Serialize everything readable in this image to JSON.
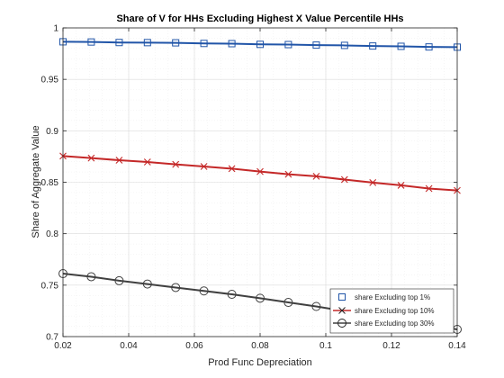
{
  "chart_data": {
    "type": "line",
    "title": "Share of V for HHs Excluding Highest X Value Percentile HHs",
    "xlabel": "Prod Func Depreciation",
    "ylabel": "Share of Aggregate Value",
    "xlim": [
      0.02,
      0.14
    ],
    "ylim": [
      0.7,
      1.0
    ],
    "xticks": [
      "0.02",
      "0.04",
      "0.06",
      "0.08",
      "0.1",
      "0.12",
      "0.14"
    ],
    "yticks": [
      "0.7",
      "0.75",
      "0.8",
      "0.85",
      "0.9",
      "0.95",
      "1"
    ],
    "grid": true,
    "legend_position": "bottom-right",
    "x": [
      0.02,
      0.0286,
      0.0371,
      0.0457,
      0.0543,
      0.0629,
      0.0714,
      0.08,
      0.0886,
      0.0971,
      0.1057,
      0.1143,
      0.1229,
      0.1314,
      0.14
    ],
    "series": [
      {
        "name": "share Excluding top 1%",
        "color": "#2155a8",
        "marker": "square",
        "values": [
          0.9865,
          0.9863,
          0.9858,
          0.9857,
          0.9855,
          0.9849,
          0.9847,
          0.984,
          0.9838,
          0.9833,
          0.983,
          0.9824,
          0.9821,
          0.9815,
          0.9813
        ]
      },
      {
        "name": "share Excluding top 10%",
        "color": "#c42828",
        "marker": "x",
        "values": [
          0.8755,
          0.8735,
          0.8714,
          0.8697,
          0.8674,
          0.8653,
          0.8632,
          0.8604,
          0.8578,
          0.8558,
          0.8526,
          0.8497,
          0.847,
          0.8439,
          0.842
        ]
      },
      {
        "name": "share Excluding top 30%",
        "color": "#404040",
        "marker": "circle",
        "values": [
          0.7612,
          0.7582,
          0.7543,
          0.7511,
          0.7477,
          0.7444,
          0.7411,
          0.7373,
          0.7332,
          0.7293,
          0.7248,
          0.7204,
          0.716,
          0.7112,
          0.707
        ]
      }
    ]
  }
}
